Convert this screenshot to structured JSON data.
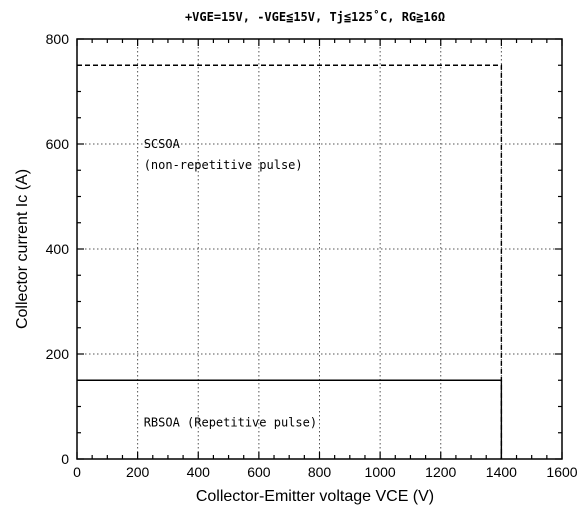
{
  "chart_data": {
    "type": "line",
    "title": "+VGE=15V, -VGE≦15V, Tj≦125˚C, RG≧16Ω",
    "xlabel": "Collector-Emitter voltage    VCE (V)",
    "ylabel": "Collector current    Ic (A)",
    "xlim": [
      0,
      1600
    ],
    "ylim": [
      0,
      800
    ],
    "x_ticks": [
      0,
      200,
      400,
      600,
      800,
      1000,
      1200,
      1400,
      1600
    ],
    "y_ticks": [
      0,
      200,
      400,
      600,
      800
    ],
    "grid": true,
    "series": [
      {
        "name": "RBSOA (Repetitive pulse)",
        "style": "solid",
        "color": "#000000",
        "points": [
          [
            0,
            150
          ],
          [
            1400,
            150
          ],
          [
            1400,
            0
          ]
        ]
      },
      {
        "name": "SCSOA (non-repetitive pulse)",
        "style": "dashed",
        "color": "#000000",
        "points": [
          [
            0,
            750
          ],
          [
            1400,
            750
          ],
          [
            1400,
            0
          ]
        ]
      }
    ],
    "annotations": [
      {
        "text": "SCSOA",
        "x": 220,
        "y": 600
      },
      {
        "text": "(non-repetitive pulse)",
        "x": 220,
        "y": 560
      },
      {
        "text": "RBSOA  (Repetitive pulse)",
        "x": 220,
        "y": 70
      }
    ]
  }
}
